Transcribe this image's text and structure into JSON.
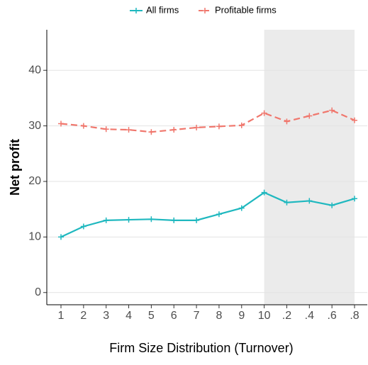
{
  "chart_data": {
    "type": "line",
    "x_label": "Firm Size Distribution (Turnover)",
    "y_label": "Net profit",
    "categories": [
      "1",
      "2",
      "3",
      "4",
      "5",
      "6",
      "7",
      "8",
      "9",
      "10",
      ".2",
      ".4",
      ".6",
      ".8"
    ],
    "series": [
      {
        "name": "All firms",
        "color": "#1fb8bf",
        "linetype": "solid",
        "values": [
          10.0,
          11.9,
          13.0,
          13.1,
          13.2,
          13.0,
          13.0,
          14.1,
          15.2,
          18.0,
          16.2,
          16.5,
          15.7,
          16.9
        ]
      },
      {
        "name": "Profitable firms",
        "color": "#f0776d",
        "linetype": "dashed",
        "values": [
          30.4,
          30.0,
          29.4,
          29.3,
          28.9,
          29.3,
          29.7,
          29.9,
          30.1,
          32.3,
          30.8,
          31.8,
          32.8,
          31.0
        ]
      }
    ],
    "shade_range": [
      "10",
      ".8"
    ],
    "shade_color": "#ebebeb",
    "ylim": [
      -2.2,
      47.3
    ],
    "yticks": [
      0,
      10,
      20,
      30,
      40
    ],
    "grid": true,
    "legend": "top"
  }
}
